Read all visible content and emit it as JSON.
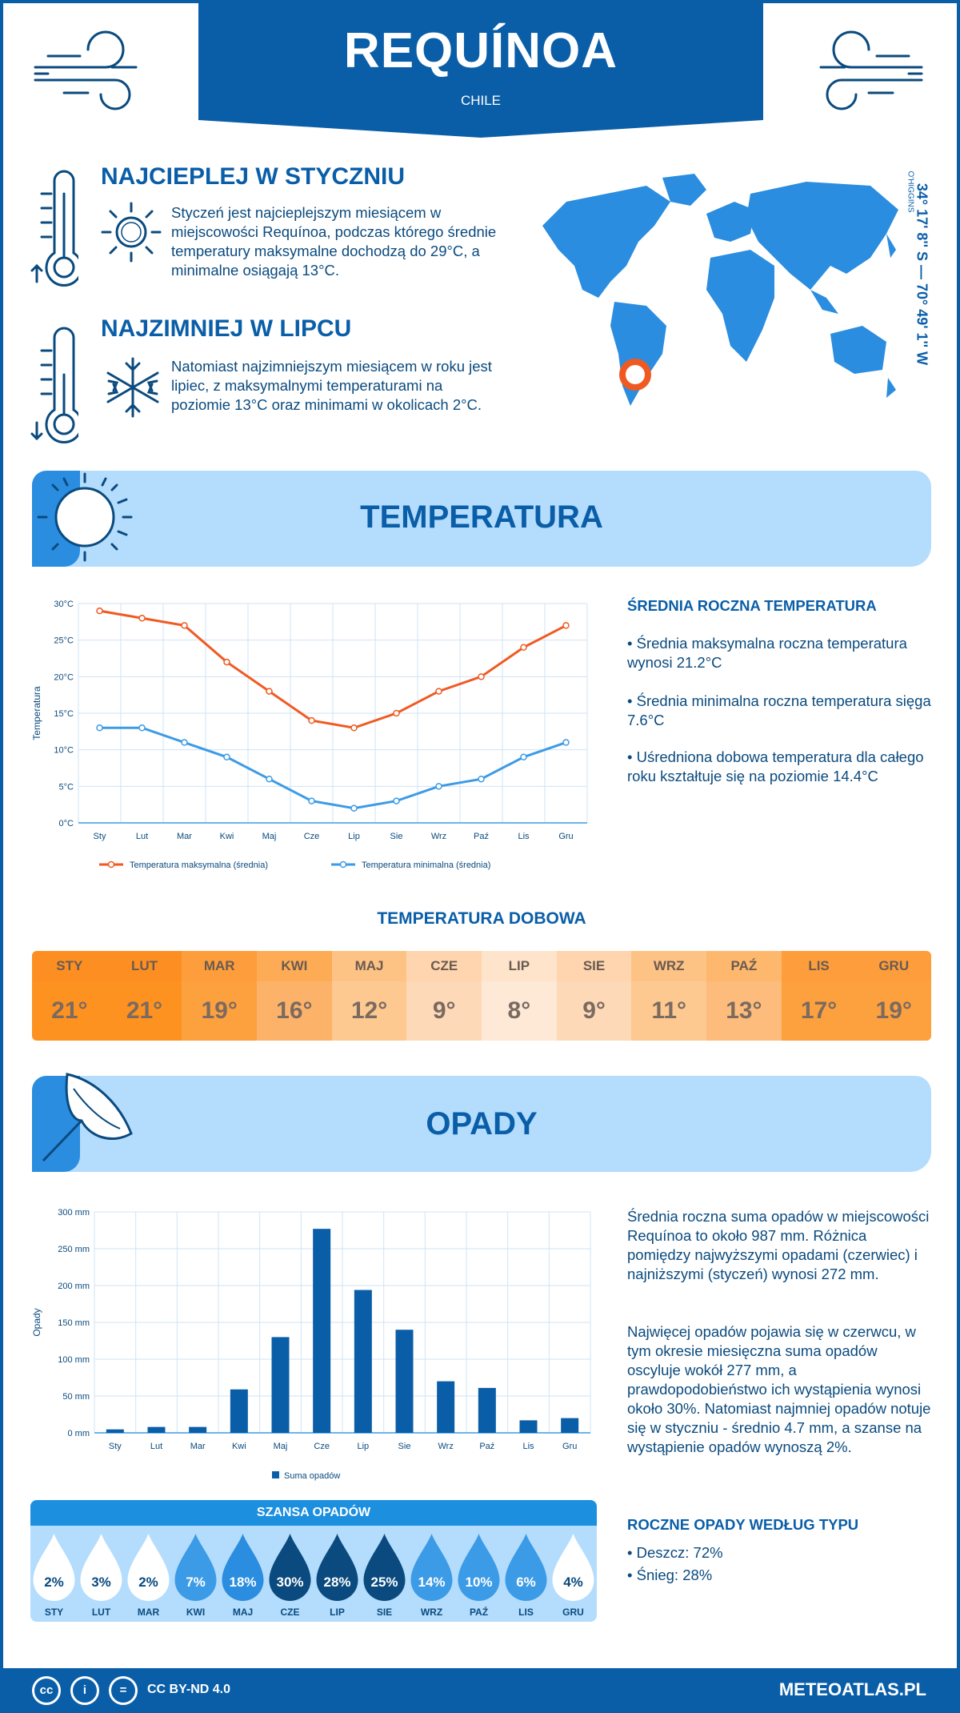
{
  "header": {
    "city": "REQUÍNOA",
    "country": "CHILE"
  },
  "coords": {
    "text": "34° 17' 8'' S — 70° 49' 1'' W",
    "region": "O'HIGGINS"
  },
  "warmest": {
    "title": "NAJCIEPLEJ W STYCZNIU",
    "text": "Styczeń jest najcieplejszym miesiącem w miejscowości Requínoa, podczas którego średnie temperatury maksymalne dochodzą do 29°C, a minimalne osiągają 13°C."
  },
  "coldest": {
    "title": "NAJZIMNIEJ W LIPCU",
    "text": "Natomiast najzimniejszym miesiącem w roku jest lipiec, z maksymalnymi temperaturami na poziomie 13°C oraz minimami w okolicach 2°C."
  },
  "temp_section": {
    "title": "TEMPERATURA"
  },
  "temp_summary": {
    "title": "ŚREDNIA ROCZNA TEMPERATURA",
    "b1": "• Średnia maksymalna roczna temperatura wynosi 21.2°C",
    "b2": "• Średnia minimalna roczna temperatura sięga 7.6°C",
    "b3": "• Uśredniona dobowa temperatura dla całego roku kształtuje się na poziomie 14.4°C"
  },
  "daily": {
    "title": "TEMPERATURA DOBOWA",
    "months": [
      "STY",
      "LUT",
      "MAR",
      "KWI",
      "MAJ",
      "CZE",
      "LIP",
      "SIE",
      "WRZ",
      "PAŹ",
      "LIS",
      "GRU"
    ],
    "values": [
      "21°",
      "21°",
      "19°",
      "16°",
      "12°",
      "9°",
      "8°",
      "9°",
      "11°",
      "13°",
      "17°",
      "19°"
    ],
    "head_colors": [
      "#fd8f22",
      "#fd8f22",
      "#fd9d3b",
      "#fdab55",
      "#fdc384",
      "#fed5ae",
      "#fee4cb",
      "#fed5ae",
      "#fdc384",
      "#fdb86e",
      "#fd9d3b",
      "#fd9d3b"
    ],
    "val_colors": [
      "#fd9220",
      "#fd9220",
      "#fda03e",
      "#fdb26a",
      "#fdc990",
      "#fed9b8",
      "#fee8d6",
      "#fed9b8",
      "#fdc990",
      "#fdbc7b",
      "#fda03e",
      "#fda03e"
    ]
  },
  "precip_section": {
    "title": "OPADY"
  },
  "precip_text": {
    "p1": "Średnia roczna suma opadów w miejscowości Requínoa to około 987 mm. Różnica pomiędzy najwyższymi opadami (czerwiec) i najniższymi (styczeń) wynosi 272 mm.",
    "p2": "Najwięcej opadów pojawia się w czerwcu, w tym okresie miesięczna suma opadów oscyluje wokół 277 mm, a prawdopodobieństwo ich wystąpienia wynosi około 30%. Natomiast najmniej opadów notuje się w styczniu - średnio 4.7 mm, a szanse na wystąpienie opadów wynoszą 2%."
  },
  "precip_type": {
    "title": "ROCZNE OPADY WEDŁUG TYPU",
    "rain": "• Deszcz: 72%",
    "snow": "• Śnieg: 28%"
  },
  "chance": {
    "title": "SZANSA OPADÓW",
    "months": [
      "STY",
      "LUT",
      "MAR",
      "KWI",
      "MAJ",
      "CZE",
      "LIP",
      "SIE",
      "WRZ",
      "PAŹ",
      "LIS",
      "GRU"
    ],
    "values": [
      "2%",
      "3%",
      "2%",
      "7%",
      "18%",
      "30%",
      "28%",
      "25%",
      "14%",
      "10%",
      "6%",
      "4%"
    ],
    "colors": [
      "#ffffff",
      "#ffffff",
      "#ffffff",
      "#3c9be6",
      "#2a8ddf",
      "#0a4a7e",
      "#0a4a7e",
      "#0a4a7e",
      "#3c9be6",
      "#3c9be6",
      "#3c9be6",
      "#ffffff"
    ]
  },
  "footer": {
    "license": "CC BY-ND 4.0",
    "site": "METEOATLAS.PL"
  },
  "chart_data": [
    {
      "type": "line",
      "categories": [
        "Sty",
        "Lut",
        "Mar",
        "Kwi",
        "Maj",
        "Cze",
        "Lip",
        "Sie",
        "Wrz",
        "Paź",
        "Lis",
        "Gru"
      ],
      "series": [
        {
          "name": "Temperatura maksymalna (średnia)",
          "color": "#f05a22",
          "values": [
            29,
            28,
            27,
            22,
            18,
            14,
            13,
            15,
            18,
            20,
            24,
            27
          ]
        },
        {
          "name": "Temperatura minimalna (średnia)",
          "color": "#3c9be6",
          "values": [
            13,
            13,
            11,
            9,
            6,
            3,
            2,
            3,
            5,
            6,
            9,
            11
          ]
        }
      ],
      "ylabel": "Temperatura",
      "ylim": [
        0,
        30
      ],
      "yticks": [
        "0°C",
        "5°C",
        "10°C",
        "15°C",
        "20°C",
        "25°C",
        "30°C"
      ],
      "grid": true,
      "legend": "bottom"
    },
    {
      "type": "bar",
      "categories": [
        "Sty",
        "Lut",
        "Mar",
        "Kwi",
        "Maj",
        "Cze",
        "Lip",
        "Sie",
        "Wrz",
        "Paź",
        "Lis",
        "Gru"
      ],
      "series": [
        {
          "name": "Suma opadów",
          "color": "#0a5ea8",
          "values": [
            4.7,
            8,
            8,
            59,
            130,
            277,
            194,
            140,
            70,
            61,
            17,
            20
          ]
        }
      ],
      "ylabel": "Opady",
      "ylim": [
        0,
        300
      ],
      "yticks": [
        "0 mm",
        "50 mm",
        "100 mm",
        "150 mm",
        "200 mm",
        "250 mm",
        "300 mm"
      ],
      "grid": true,
      "legend": "bottom"
    }
  ]
}
